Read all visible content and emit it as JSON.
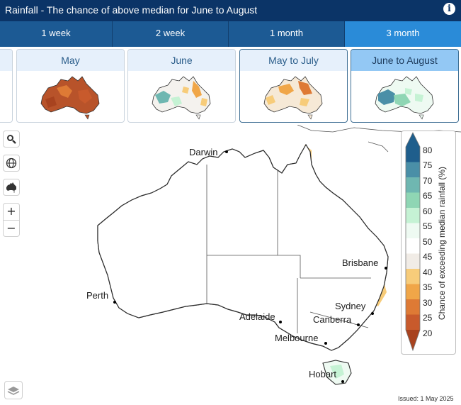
{
  "header": {
    "title": "Rainfall - The chance of above median for June to August",
    "info_label": "i"
  },
  "tabs": [
    {
      "label": "1 week",
      "active": false
    },
    {
      "label": "2 week",
      "active": false
    },
    {
      "label": "1 month",
      "active": false
    },
    {
      "label": "3 month",
      "active": true
    }
  ],
  "thumbnails": [
    {
      "label": "May",
      "dominant": "dry"
    },
    {
      "label": "June",
      "dominant": "mixed"
    },
    {
      "label": "May to July",
      "dominant": "dry-mixed"
    },
    {
      "label": "June to August",
      "dominant": "wet",
      "active": true
    }
  ],
  "map": {
    "cities": [
      "Darwin",
      "Brisbane",
      "Perth",
      "Sydney",
      "Adelaide",
      "Canberra",
      "Melbourne",
      "Hobart"
    ],
    "issued": "Issued: 1 May 2025"
  },
  "legend": {
    "title": "Chance of exceeding median rainfall (%)",
    "ticks": [
      "80",
      "75",
      "70",
      "65",
      "60",
      "55",
      "50",
      "45",
      "40",
      "35",
      "30",
      "25",
      "20"
    ],
    "colors": [
      "#1f5e8c",
      "#4a8fa7",
      "#6fb7b1",
      "#8fd6b4",
      "#c5f2d4",
      "#eefaf2",
      "#ffffff",
      "#ffffff",
      "#f1ece6",
      "#f7cc7a",
      "#f0a648",
      "#de7a35",
      "#c85a2c",
      "#a8431f"
    ]
  },
  "controls": {
    "search_icon": "search-icon",
    "globe_icon": "globe-icon",
    "australia_icon": "australia-icon",
    "zoom_in": "+",
    "zoom_out": "−",
    "layers_icon": "layers-icon"
  }
}
